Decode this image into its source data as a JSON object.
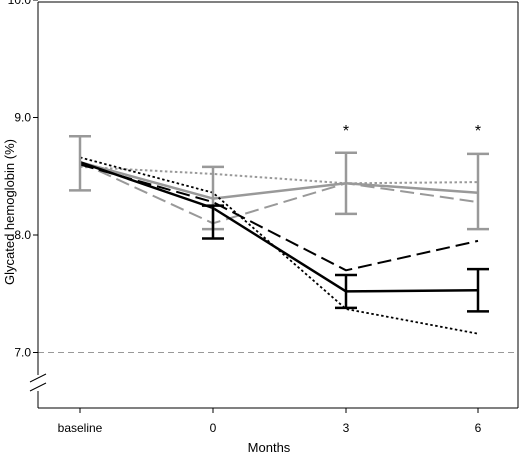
{
  "chart_data": {
    "type": "line",
    "xlabel": "Months",
    "ylabel": "Glycated hemoglobin (%)",
    "categories": [
      "baseline",
      "0",
      "3",
      "6"
    ],
    "ylim": [
      6.6,
      10.0
    ],
    "y_ticks": [
      "7.0",
      "8.0",
      "9.0",
      "10.0"
    ],
    "axis_break": true,
    "reference_line": {
      "y": 7.0,
      "color": "#999999",
      "dash": "dashed"
    },
    "significance_marks": [
      {
        "category": "3",
        "label": "*"
      },
      {
        "category": "6",
        "label": "*"
      }
    ],
    "series": [
      {
        "color": "#999999",
        "dash": "solid",
        "width": 2.5,
        "values": [
          8.62,
          8.31,
          8.44,
          8.36
        ],
        "errors": [
          [
            8.38,
            8.84
          ],
          [
            8.05,
            8.58
          ],
          [
            8.18,
            8.7
          ],
          [
            8.05,
            8.69
          ]
        ]
      },
      {
        "color": "#999999",
        "dash": "long",
        "width": 2,
        "values": [
          8.62,
          8.1,
          8.44,
          8.28
        ]
      },
      {
        "color": "#999999",
        "dash": "dot",
        "width": 2,
        "values": [
          8.58,
          8.52,
          8.44,
          8.45
        ]
      },
      {
        "color": "#000000",
        "dash": "solid",
        "width": 2.5,
        "values": [
          8.62,
          8.23,
          7.52,
          7.53
        ],
        "errors": [
          [
            8.62,
            8.62
          ],
          [
            7.97,
            8.25
          ],
          [
            7.38,
            7.66
          ],
          [
            7.35,
            7.71
          ]
        ]
      },
      {
        "color": "#000000",
        "dash": "long",
        "width": 2,
        "values": [
          8.6,
          8.28,
          7.7,
          7.95
        ]
      },
      {
        "color": "#000000",
        "dash": "dot",
        "width": 1.8,
        "values": [
          8.66,
          8.36,
          7.37,
          7.16
        ]
      }
    ]
  }
}
